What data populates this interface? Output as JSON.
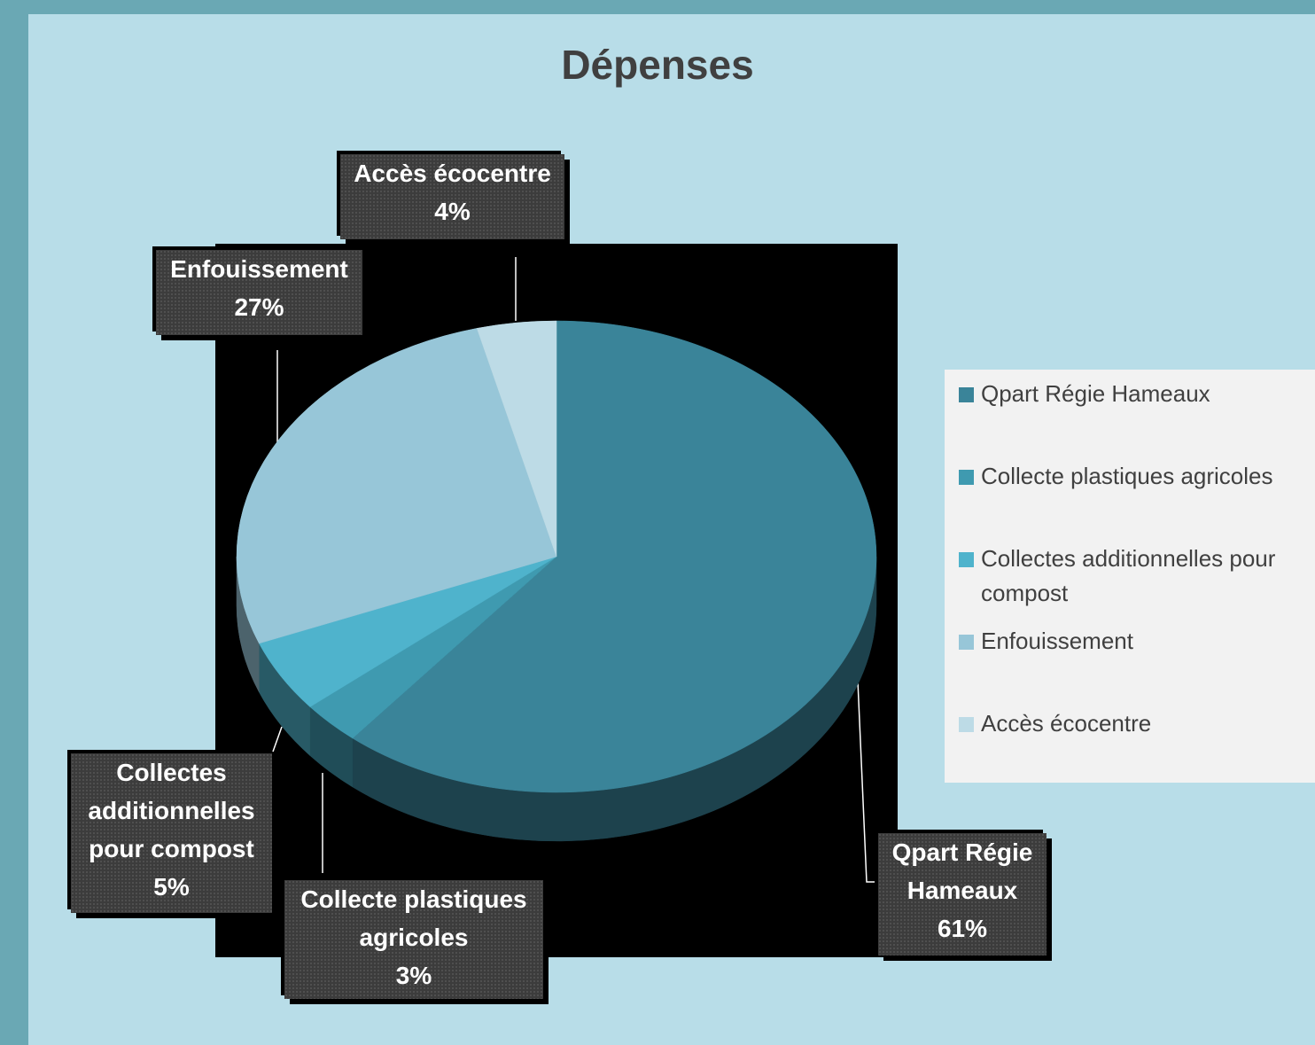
{
  "chart_data": {
    "type": "pie",
    "title": "Dépenses",
    "categories": [
      "Qpart Régie Hameaux",
      "Collecte plastiques agricoles",
      "Collectes additionnelles pour compost",
      "Enfouissement",
      "Accès écocentre"
    ],
    "values": [
      61,
      3,
      5,
      27,
      4
    ],
    "value_labels": [
      "61%",
      "3%",
      "5%",
      "27%",
      "4%"
    ],
    "colors": [
      "#3a8499",
      "#3f9ab0",
      "#4fb3cc",
      "#97c6d8",
      "#bddbe6"
    ],
    "legend": "right"
  }
}
